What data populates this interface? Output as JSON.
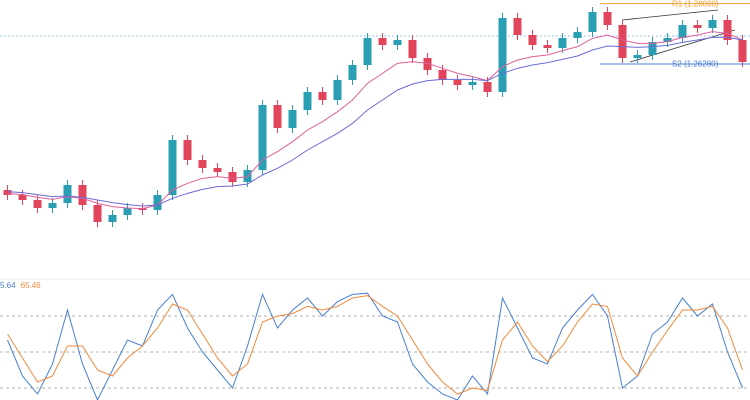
{
  "chart_data": [
    {
      "type": "candlestick",
      "ylim": [
        1.1995,
        1.282
      ],
      "up_color": "#2a9fb4",
      "down_color": "#e0455c",
      "open": [
        1.225,
        1.2235,
        1.222,
        1.2196,
        1.2211,
        1.2265,
        1.2205,
        1.2154,
        1.2175,
        1.2196,
        1.219,
        1.2235,
        1.24,
        1.234,
        1.2316,
        1.2304,
        1.2274,
        1.231,
        1.2505,
        1.2436,
        1.249,
        1.2544,
        1.252,
        1.258,
        1.2625,
        1.2706,
        1.2685,
        1.27,
        1.2646,
        1.261,
        1.258,
        1.2565,
        1.2574,
        1.2544,
        1.2766,
        1.2715,
        1.2685,
        1.2676,
        1.2706,
        1.2724,
        1.2784,
        1.2745,
        1.2646,
        1.2655,
        1.2694,
        1.2706,
        1.2745,
        1.2736,
        1.276,
        1.27
      ],
      "high": [
        1.2265,
        1.225,
        1.2235,
        1.2226,
        1.228,
        1.228,
        1.222,
        1.219,
        1.2211,
        1.2211,
        1.225,
        1.2415,
        1.2415,
        1.2355,
        1.2331,
        1.2319,
        1.2325,
        1.252,
        1.252,
        1.2505,
        1.2559,
        1.2559,
        1.2595,
        1.264,
        1.2721,
        1.2721,
        1.2715,
        1.2715,
        1.2661,
        1.2625,
        1.2595,
        1.2589,
        1.2589,
        1.2781,
        1.2781,
        1.273,
        1.27,
        1.2721,
        1.2739,
        1.2799,
        1.2799,
        1.276,
        1.267,
        1.2709,
        1.2721,
        1.276,
        1.276,
        1.2775,
        1.2775,
        1.2715
      ],
      "low": [
        1.222,
        1.2205,
        1.2181,
        1.2181,
        1.2196,
        1.219,
        1.2139,
        1.2139,
        1.216,
        1.2175,
        1.2175,
        1.222,
        1.2325,
        1.2301,
        1.2289,
        1.2259,
        1.2259,
        1.2295,
        1.2421,
        1.2421,
        1.2475,
        1.2505,
        1.2505,
        1.2565,
        1.261,
        1.267,
        1.267,
        1.2631,
        1.2595,
        1.2565,
        1.255,
        1.255,
        1.2529,
        1.2529,
        1.27,
        1.267,
        1.2661,
        1.2661,
        1.2691,
        1.2709,
        1.273,
        1.2631,
        1.2631,
        1.264,
        1.2679,
        1.2691,
        1.2721,
        1.2721,
        1.2685,
        1.2619
      ],
      "close": [
        1.2235,
        1.222,
        1.2196,
        1.2211,
        1.2265,
        1.2205,
        1.2154,
        1.2175,
        1.2196,
        1.219,
        1.2235,
        1.24,
        1.234,
        1.2316,
        1.2304,
        1.2274,
        1.231,
        1.2505,
        1.2436,
        1.249,
        1.2544,
        1.252,
        1.258,
        1.2625,
        1.2706,
        1.2685,
        1.27,
        1.2646,
        1.261,
        1.258,
        1.2565,
        1.2574,
        1.2544,
        1.2766,
        1.2715,
        1.2685,
        1.2676,
        1.2706,
        1.2724,
        1.2784,
        1.2745,
        1.2646,
        1.2655,
        1.2694,
        1.2706,
        1.2745,
        1.2736,
        1.276,
        1.27,
        1.2634
      ],
      "series": [
        {
          "color": "#e0609a",
          "values": [
            1.224,
            1.2236,
            1.2228,
            1.2222,
            1.223,
            1.2225,
            1.221,
            1.22,
            1.2196,
            1.2194,
            1.2205,
            1.225,
            1.227,
            1.2285,
            1.229,
            1.2285,
            1.229,
            1.234,
            1.2365,
            1.2395,
            1.243,
            1.2455,
            1.2485,
            1.252,
            1.257,
            1.26,
            1.263,
            1.2635,
            1.263,
            1.2615,
            1.26,
            1.259,
            1.2578,
            1.262,
            1.264,
            1.265,
            1.2655,
            1.2668,
            1.268,
            1.2705,
            1.2715,
            1.27,
            1.269,
            1.269,
            1.2695,
            1.2708,
            1.2715,
            1.2725,
            1.272,
            1.27
          ]
        },
        {
          "color": "#6b6bd8",
          "values": [
            1.2245,
            1.2242,
            1.2236,
            1.223,
            1.2232,
            1.2228,
            1.222,
            1.2212,
            1.2206,
            1.2202,
            1.2205,
            1.2225,
            1.224,
            1.2252,
            1.226,
            1.2262,
            1.2268,
            1.2295,
            1.2315,
            1.234,
            1.237,
            1.2395,
            1.242,
            1.245,
            1.249,
            1.252,
            1.255,
            1.2568,
            1.2578,
            1.2582,
            1.2582,
            1.2582,
            1.2578,
            1.26,
            1.2615,
            1.2625,
            1.2632,
            1.2642,
            1.2652,
            1.267,
            1.2682,
            1.268,
            1.2678,
            1.268,
            1.2684,
            1.2693,
            1.27,
            1.2708,
            1.2708,
            1.27
          ]
        }
      ],
      "price_line": {
        "value": 1.2712,
        "color": "#7fb3dc"
      },
      "pivots": [
        {
          "label": "R1 (1.28090)",
          "value": 1.2809,
          "color": "#f5a035"
        },
        {
          "label": "S2 (1.26280)",
          "value": 1.2628,
          "color": "#4a7fd0"
        }
      ]
    },
    {
      "type": "line",
      "ylim": [
        0,
        100
      ],
      "levels": [
        80,
        50,
        20
      ],
      "readouts": [
        {
          "text": "5.64",
          "color": "#4a7fd0"
        },
        {
          "text": "65.46",
          "color": "#f08a3c"
        }
      ],
      "series": [
        {
          "color": "#4a7fd0",
          "values": [
            60,
            30,
            15,
            40,
            85,
            40,
            10,
            35,
            60,
            55,
            85,
            98,
            70,
            50,
            35,
            20,
            55,
            98,
            70,
            85,
            95,
            80,
            92,
            98,
            99,
            80,
            75,
            40,
            25,
            15,
            10,
            30,
            15,
            95,
            70,
            45,
            40,
            70,
            85,
            98,
            80,
            20,
            30,
            65,
            75,
            95,
            80,
            90,
            50,
            20
          ]
        },
        {
          "color": "#f08a3c",
          "values": [
            65,
            45,
            25,
            30,
            55,
            55,
            35,
            30,
            45,
            55,
            70,
            90,
            85,
            65,
            45,
            30,
            40,
            75,
            80,
            82,
            88,
            85,
            88,
            95,
            97,
            88,
            80,
            60,
            40,
            25,
            15,
            20,
            18,
            60,
            75,
            55,
            42,
            55,
            75,
            90,
            88,
            45,
            30,
            50,
            68,
            85,
            85,
            88,
            70,
            35
          ]
        }
      ]
    }
  ]
}
